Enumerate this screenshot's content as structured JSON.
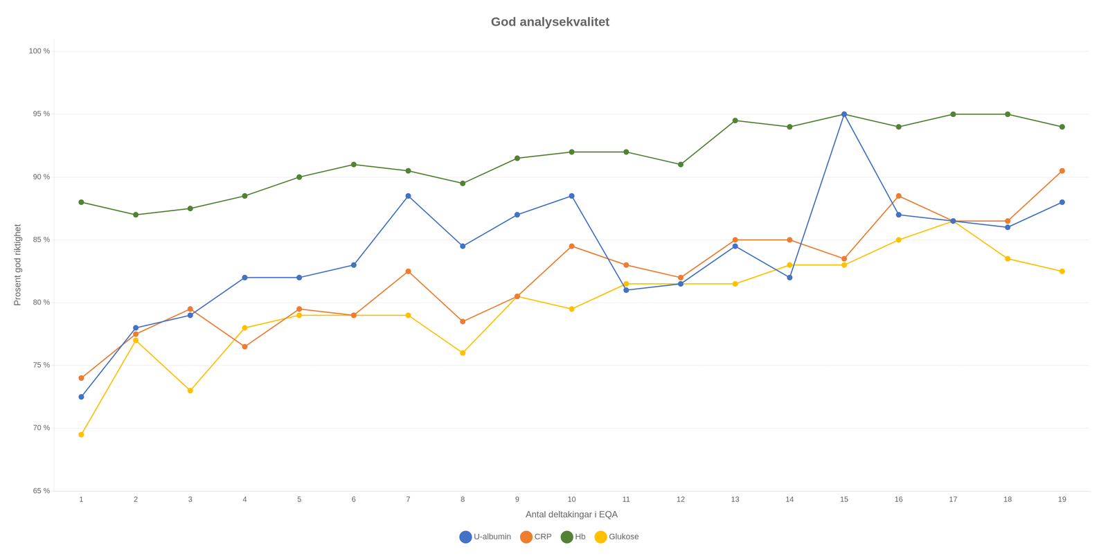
{
  "chart_data": {
    "type": "line",
    "title": "God analysekvalitet",
    "x_label": "Antal deltakingar i EQA",
    "y_label": "Prosent god riktighet",
    "x": [
      1,
      2,
      3,
      4,
      5,
      6,
      7,
      8,
      9,
      10,
      11,
      12,
      13,
      14,
      15,
      16,
      17,
      18,
      19
    ],
    "series": [
      {
        "name": "U-albumin",
        "color": "#4472C4",
        "marker": "circle",
        "values": [
          72.5,
          78.0,
          79.0,
          82.0,
          82.0,
          83.0,
          88.5,
          84.5,
          87.0,
          88.5,
          81.0,
          81.5,
          84.5,
          82.0,
          95.0,
          87.0,
          86.5,
          86.0,
          88.0
        ]
      },
      {
        "name": "CRP",
        "color": "#ED7D31",
        "marker": "circle",
        "values": [
          74.0,
          77.5,
          79.5,
          76.5,
          79.5,
          79.0,
          82.5,
          78.5,
          80.5,
          84.5,
          83.0,
          82.0,
          85.0,
          85.0,
          83.5,
          88.5,
          86.5,
          86.5,
          90.5
        ]
      },
      {
        "name": "Hb",
        "color": "#548235",
        "marker": "circle",
        "values": [
          88.0,
          87.0,
          87.5,
          88.5,
          90.0,
          91.0,
          90.5,
          89.5,
          91.5,
          92.0,
          92.0,
          91.0,
          94.5,
          94.0,
          95.0,
          94.0,
          95.0,
          95.0,
          94.0
        ]
      },
      {
        "name": "Glukose",
        "color": "#FFC000",
        "marker": "circle",
        "values": [
          69.5,
          77.0,
          73.0,
          78.0,
          79.0,
          79.0,
          79.0,
          76.0,
          80.5,
          79.5,
          81.5,
          81.5,
          81.5,
          83.0,
          83.0,
          85.0,
          86.5,
          83.5,
          82.5
        ]
      }
    ],
    "xlim": [
      0.5,
      19.5
    ],
    "xticks": [
      1,
      2,
      3,
      4,
      5,
      6,
      7,
      8,
      9,
      10,
      11,
      12,
      13,
      14,
      15,
      16,
      17,
      18,
      19
    ],
    "ylim": [
      65,
      101
    ],
    "yticks": [
      {
        "value": 65,
        "label": "65 %"
      },
      {
        "value": 70,
        "label": "70 %"
      },
      {
        "value": 75,
        "label": "75 %"
      },
      {
        "value": 80,
        "label": "80 %"
      },
      {
        "value": 85,
        "label": "85 %"
      },
      {
        "value": 90,
        "label": "90 %"
      },
      {
        "value": 95,
        "label": "95 %"
      },
      {
        "value": 100,
        "label": "100 %"
      }
    ],
    "grid": "y",
    "legend": "bottom"
  }
}
